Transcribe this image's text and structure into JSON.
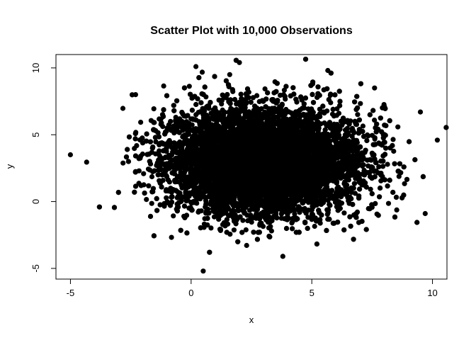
{
  "chart_data": {
    "type": "scatter",
    "title": "Scatter Plot with 10,000 Observations",
    "xlabel": "x",
    "ylabel": "y",
    "xlim": [
      -5.6,
      10.6
    ],
    "ylim": [
      -5.8,
      11.0
    ],
    "x_ticks": [
      -5,
      0,
      5,
      10
    ],
    "y_ticks": [
      -5,
      0,
      5,
      10
    ],
    "x_tick_labels": [
      "-5",
      "0",
      "5",
      "10"
    ],
    "y_tick_labels": [
      "-5",
      "0",
      "5",
      "10"
    ],
    "grid": false,
    "legend": "none",
    "point_color": "#000000",
    "n_observations": 10000,
    "distribution": {
      "x_mean": 3.0,
      "x_sd": 2.0,
      "y_mean": 3.0,
      "y_sd": 2.0
    },
    "notable_points": [
      {
        "x": -5.0,
        "y": 3.5
      },
      {
        "x": 10.2,
        "y": 4.6
      },
      {
        "x": 9.7,
        "y": -0.9
      },
      {
        "x": 0.5,
        "y": -5.2
      },
      {
        "x": 2.0,
        "y": 10.4
      },
      {
        "x": 0.2,
        "y": 10.1
      },
      {
        "x": 3.8,
        "y": -4.1
      },
      {
        "x": 1.6,
        "y": 9.5
      },
      {
        "x": -2.3,
        "y": 8.0
      },
      {
        "x": 7.6,
        "y": 8.5
      },
      {
        "x": 9.5,
        "y": 6.7
      }
    ]
  }
}
